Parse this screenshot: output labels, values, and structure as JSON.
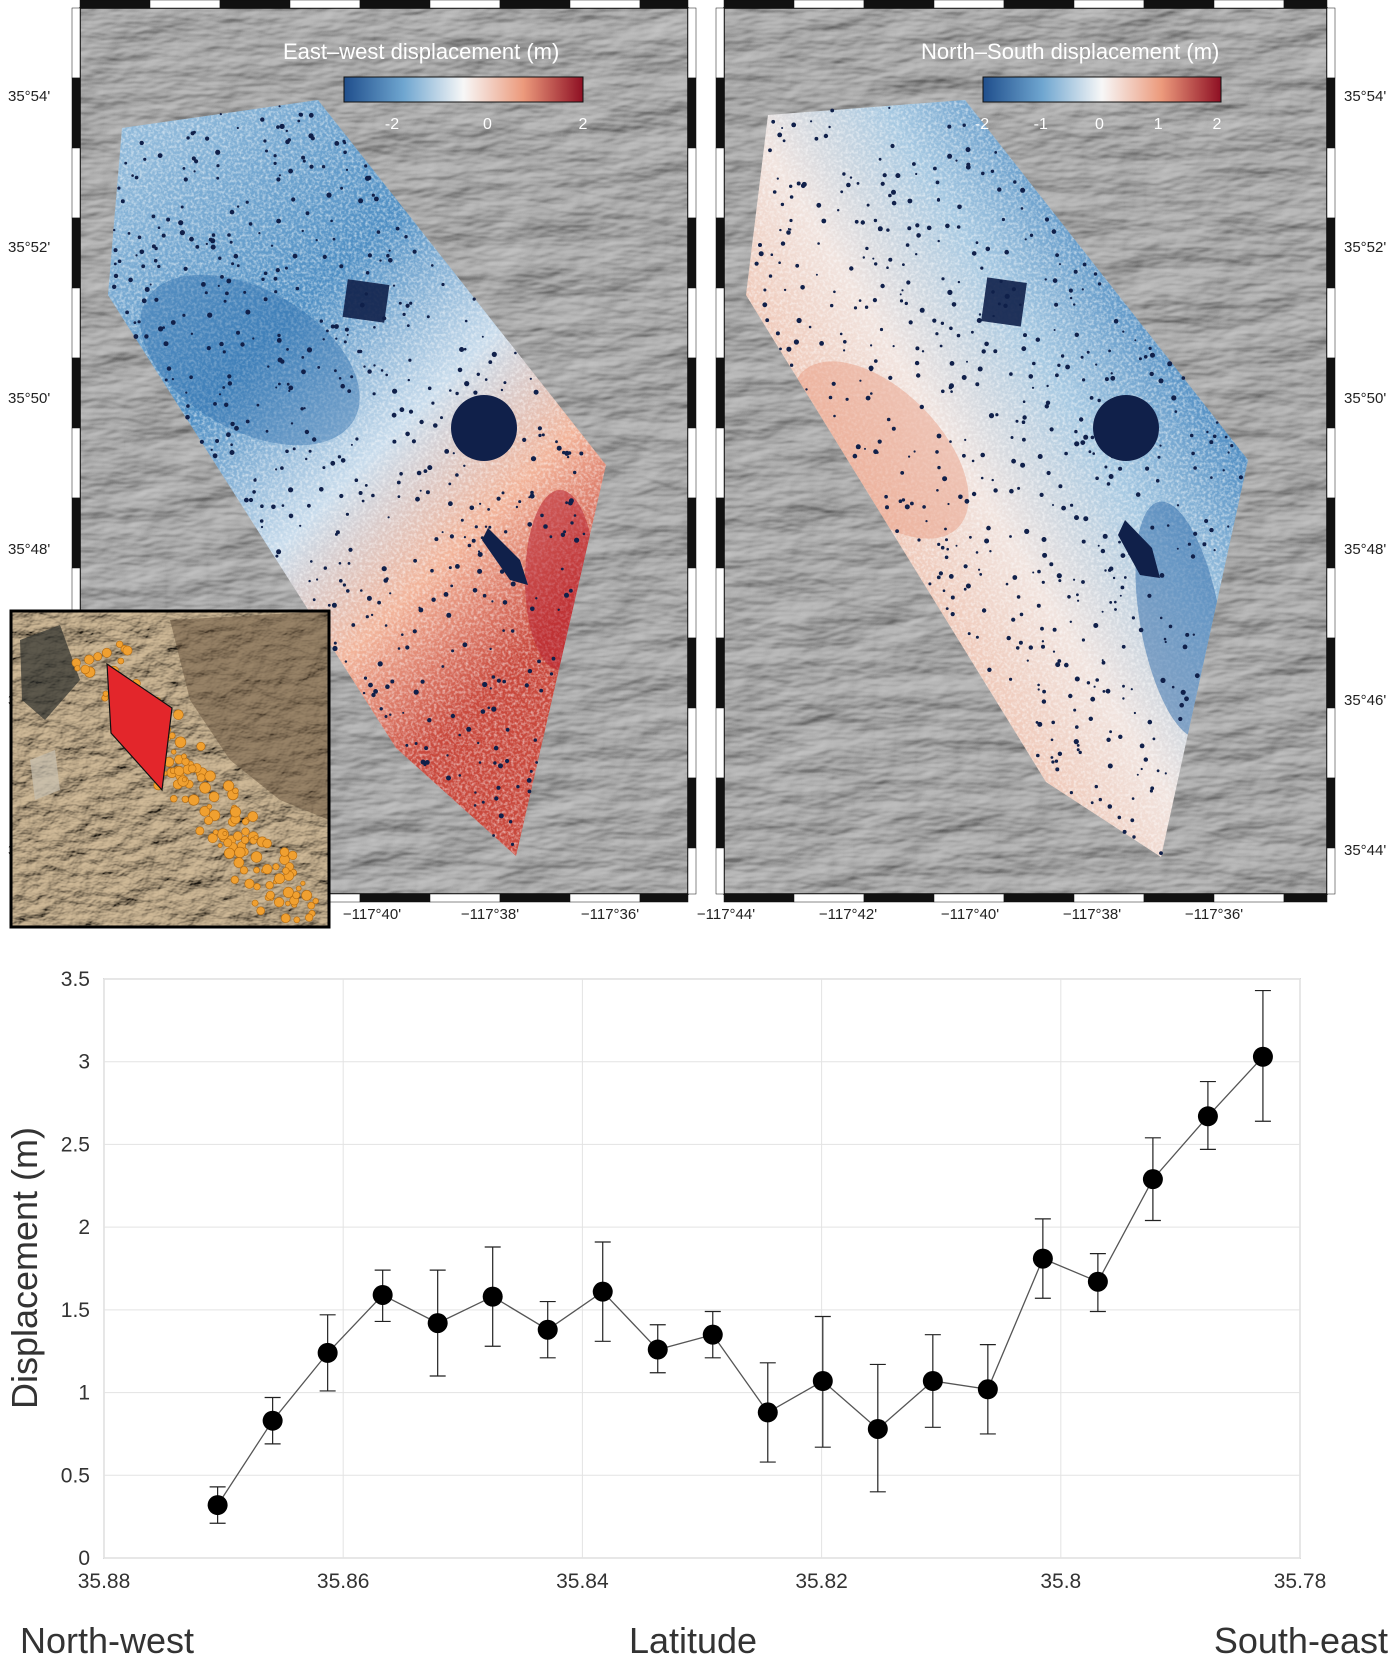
{
  "maps": {
    "left_panel": {
      "colorbar_title": "East–west displacement (m)",
      "colorbar_ticks": [
        "-2",
        "0",
        "2"
      ]
    },
    "right_panel": {
      "colorbar_title": "North–South displacement (m)",
      "colorbar_ticks": [
        "-2",
        "-1",
        "0",
        "1",
        "2"
      ]
    },
    "lat_labels": [
      "35°54'",
      "35°52'",
      "35°50'",
      "35°48'",
      "35°46'",
      "35°44'"
    ],
    "lon_labels_left": [
      "−117°40'",
      "−117°38'",
      "−117°36'"
    ],
    "lon_labels_right": [
      "−117°44'",
      "−117°42'",
      "−117°40'",
      "−117°38'",
      "−117°36'"
    ],
    "colors": {
      "negative": "#1f5a9a",
      "positive": "#b2182b",
      "neutral": "#f7f7f7",
      "hillshade": "#7a7a7a",
      "mask": "#10204a",
      "inset_polygon": "#e3262b",
      "inset_points": "#f0a030"
    }
  },
  "chart_data": {
    "type": "scatter",
    "xlabel": "Latitude",
    "ylabel": "Displacement (m)",
    "x_direction": "reversed",
    "xlim": [
      35.88,
      35.78
    ],
    "ylim": [
      0,
      3.5
    ],
    "x_ticks": [
      "35.88",
      "35.86",
      "35.84",
      "35.82",
      "35.8",
      "35.78"
    ],
    "y_ticks": [
      "0",
      "0.5",
      "1",
      "1.5",
      "2",
      "2.5",
      "3",
      "3.5"
    ],
    "grid": true,
    "left_annotation": "North-west",
    "right_annotation": "South-east",
    "x": [
      35.8705,
      35.8659,
      35.8613,
      35.8567,
      35.8521,
      35.8475,
      35.8429,
      35.8383,
      35.8337,
      35.8291,
      35.8245,
      35.8199,
      35.8153,
      35.8107,
      35.8061,
      35.8015,
      35.7969,
      35.7923,
      35.7877,
      35.7831
    ],
    "y": [
      0.32,
      0.83,
      1.24,
      1.59,
      1.42,
      1.58,
      1.38,
      1.61,
      1.26,
      1.35,
      0.88,
      1.07,
      0.78,
      1.07,
      1.02,
      1.81,
      1.67,
      2.29,
      2.67,
      3.03
    ],
    "err_low": [
      0.21,
      0.69,
      1.01,
      1.43,
      1.1,
      1.28,
      1.21,
      1.31,
      1.12,
      1.21,
      0.58,
      0.67,
      0.4,
      0.79,
      0.75,
      1.57,
      1.49,
      2.04,
      2.47,
      2.64
    ],
    "err_high": [
      0.43,
      0.97,
      1.47,
      1.74,
      1.74,
      1.88,
      1.55,
      1.91,
      1.41,
      1.49,
      1.18,
      1.46,
      1.17,
      1.35,
      1.29,
      2.05,
      1.84,
      2.54,
      2.88,
      3.43
    ],
    "marker_color": "#000000",
    "line_color": "#555555"
  }
}
